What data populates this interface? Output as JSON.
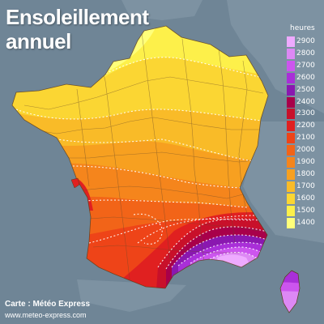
{
  "title_line1": "Ensoleillement",
  "title_line2": "annuel",
  "legend": {
    "unit": "heures",
    "steps": [
      {
        "label": "2900",
        "color": "#eeaaff"
      },
      {
        "label": "2800",
        "color": "#dd88f4"
      },
      {
        "label": "2700",
        "color": "#cc55ee"
      },
      {
        "label": "2600",
        "color": "#a92fd8"
      },
      {
        "label": "2500",
        "color": "#8a18b0"
      },
      {
        "label": "2400",
        "color": "#a8004a"
      },
      {
        "label": "2300",
        "color": "#c8102a"
      },
      {
        "label": "2200",
        "color": "#e02020"
      },
      {
        "label": "2100",
        "color": "#ee4418"
      },
      {
        "label": "2000",
        "color": "#f26418"
      },
      {
        "label": "1900",
        "color": "#f5851c"
      },
      {
        "label": "1800",
        "color": "#f7a020"
      },
      {
        "label": "1700",
        "color": "#f9bb28"
      },
      {
        "label": "1600",
        "color": "#fbd633"
      },
      {
        "label": "1500",
        "color": "#fdf04a"
      },
      {
        "label": "1400",
        "color": "#ffff7a"
      }
    ]
  },
  "credit": "Carte : Météo Express",
  "url": "www.meteo-express.com",
  "colors": {
    "sea": "#6f8596",
    "neighbours": "#7d92a2",
    "department_borders": "#6a4a2a",
    "isolines": "#ffffff"
  }
}
